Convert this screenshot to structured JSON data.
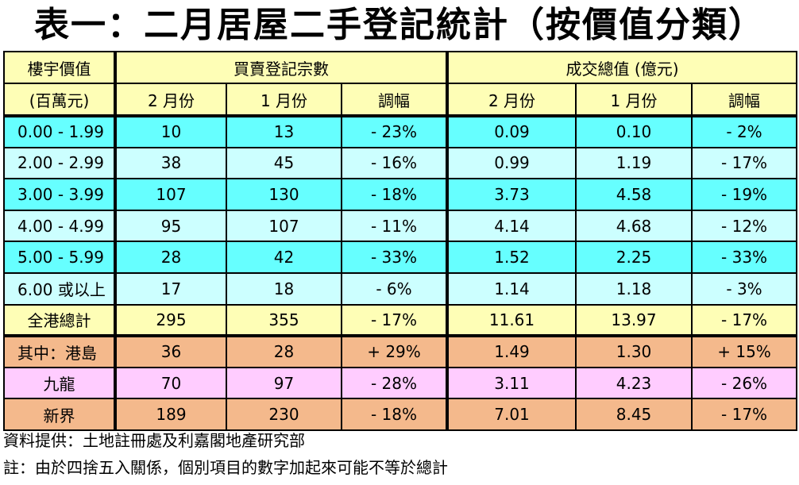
{
  "title": "表一：二月居屋二手登記統計（按價值分類）",
  "header": {
    "price_label_top": "樓宇價值",
    "price_label_bottom": "(百萬元)",
    "group_cases": "買賣登記宗數",
    "group_value": "成交總值 (億元)",
    "col_feb": "2 月份",
    "col_jan": "1 月份",
    "col_change": "調幅"
  },
  "rows": [
    {
      "label": "0.00 - 1.99",
      "bg": "#66ffff",
      "cases_feb": "10",
      "cases_jan": "13",
      "cases_chg": "- 23%",
      "value_feb": "0.09",
      "value_jan": "0.10",
      "value_chg": "- 2%"
    },
    {
      "label": "2.00 - 2.99",
      "bg": "#ccffff",
      "cases_feb": "38",
      "cases_jan": "45",
      "cases_chg": "- 16%",
      "value_feb": "0.99",
      "value_jan": "1.19",
      "value_chg": "- 17%"
    },
    {
      "label": "3.00 - 3.99",
      "bg": "#66ffff",
      "cases_feb": "107",
      "cases_jan": "130",
      "cases_chg": "- 18%",
      "value_feb": "3.73",
      "value_jan": "4.58",
      "value_chg": "- 19%"
    },
    {
      "label": "4.00 - 4.99",
      "bg": "#ccffff",
      "cases_feb": "95",
      "cases_jan": "107",
      "cases_chg": "- 11%",
      "value_feb": "4.14",
      "value_jan": "4.68",
      "value_chg": "- 12%"
    },
    {
      "label": "5.00 - 5.99",
      "bg": "#66ffff",
      "cases_feb": "28",
      "cases_jan": "42",
      "cases_chg": "- 33%",
      "value_feb": "1.52",
      "value_jan": "2.25",
      "value_chg": "- 33%"
    },
    {
      "label": "6.00 或以上",
      "bg": "#ccffff",
      "cases_feb": "17",
      "cases_jan": "18",
      "cases_chg": "- 6%",
      "value_feb": "1.14",
      "value_jan": "1.18",
      "value_chg": "- 3%"
    },
    {
      "label": "全港總計",
      "bg": "#fefeb6",
      "center": true,
      "cases_feb": "295",
      "cases_jan": "355",
      "cases_chg": "- 17%",
      "value_feb": "11.61",
      "value_jan": "13.97",
      "value_chg": "- 17%"
    },
    {
      "label": "其中：港島",
      "bg": "#f4b98c",
      "cases_feb": "36",
      "cases_jan": "28",
      "cases_chg": "+ 29%",
      "value_feb": "1.49",
      "value_jan": "1.30",
      "value_chg": "+ 15%"
    },
    {
      "label": "九龍",
      "bg": "#ffccff",
      "center": true,
      "cases_feb": "70",
      "cases_jan": "97",
      "cases_chg": "- 28%",
      "value_feb": "3.11",
      "value_jan": "4.23",
      "value_chg": "- 26%"
    },
    {
      "label": "新界",
      "bg": "#f4b98c",
      "center": true,
      "cases_feb": "189",
      "cases_jan": "230",
      "cases_chg": "- 18%",
      "value_feb": "7.01",
      "value_jan": "8.45",
      "value_chg": "- 17%"
    }
  ],
  "footnotes": {
    "source": "資料提供：土地註冊處及利嘉閣地產研究部",
    "note": "註：由於四捨五入關係，個別項目的數字加起來可能不等於總計"
  }
}
